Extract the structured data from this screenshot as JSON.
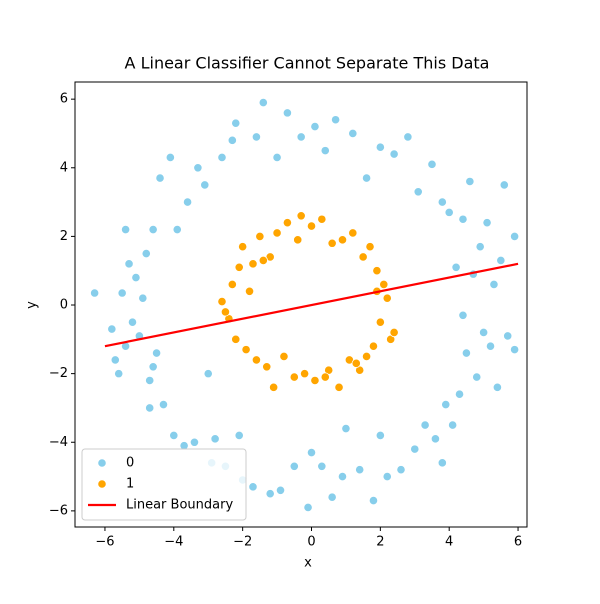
{
  "chart_data": {
    "type": "scatter",
    "title": "A Linear Classifier Cannot Separate This Data",
    "xlabel": "x",
    "ylabel": "y",
    "xlim": [
      -6.87,
      6.26
    ],
    "ylim": [
      -6.47,
      6.5
    ],
    "xticks": [
      {
        "value": -6,
        "label": "−6"
      },
      {
        "value": -4,
        "label": "−4"
      },
      {
        "value": -2,
        "label": "−2"
      },
      0,
      2,
      4,
      6
    ],
    "yticks": [
      {
        "value": -6,
        "label": "−6"
      },
      {
        "value": -4,
        "label": "−4"
      },
      {
        "value": -2,
        "label": "−2"
      },
      0,
      2,
      4,
      6
    ],
    "legend": "lower left",
    "series": [
      {
        "name": "0",
        "color": "#87ceeb",
        "x": [
          -6.3,
          -5.8,
          -5.7,
          -5.6,
          -5.5,
          -5.4,
          -5.3,
          -5.4,
          -5.2,
          -5.1,
          -5.0,
          -4.9,
          -4.8,
          -4.7,
          -4.6,
          -4.7,
          -4.5,
          -4.4,
          -4.3,
          -4.1,
          -4.0,
          -3.9,
          -3.7,
          -3.6,
          -3.4,
          -3.3,
          -3.1,
          -2.9,
          -2.8,
          -2.6,
          -2.5,
          -2.3,
          -2.0,
          -2.2,
          -1.7,
          -1.6,
          -1.4,
          -1.2,
          -1.0,
          -0.9,
          -0.7,
          -0.5,
          -0.3,
          -0.1,
          0.1,
          0.3,
          0.4,
          0.6,
          0.7,
          0.9,
          1.2,
          1.4,
          1.6,
          1.8,
          2.0,
          2.2,
          2.4,
          2.6,
          2.8,
          3.0,
          3.1,
          3.3,
          3.5,
          3.6,
          3.8,
          3.9,
          4.0,
          4.1,
          4.2,
          4.3,
          4.4,
          4.5,
          4.6,
          4.7,
          4.8,
          4.9,
          5.0,
          5.1,
          5.2,
          5.3,
          5.4,
          5.5,
          5.6,
          5.7,
          5.9,
          5.9,
          3.8,
          -2.1,
          4.4,
          -4.6,
          0.0,
          -3.0,
          2.0,
          1.0
        ],
        "y": [
          0.35,
          -0.7,
          -1.6,
          -2.0,
          0.35,
          -1.2,
          1.2,
          2.2,
          -0.5,
          0.8,
          -0.9,
          0.2,
          1.5,
          -2.2,
          2.2,
          -3.0,
          -1.4,
          3.7,
          -2.9,
          4.3,
          -3.8,
          2.2,
          -4.1,
          3.0,
          -4.0,
          4.0,
          3.5,
          -4.6,
          -3.9,
          4.3,
          -4.7,
          4.8,
          -5.1,
          5.3,
          -5.3,
          4.9,
          5.9,
          -5.5,
          4.3,
          -5.4,
          5.6,
          -4.7,
          4.9,
          -5.9,
          5.2,
          -4.7,
          4.5,
          -5.6,
          5.4,
          -5.0,
          5.0,
          -4.8,
          3.7,
          -5.7,
          4.6,
          -5.0,
          4.4,
          -4.8,
          4.9,
          -4.2,
          3.3,
          -3.5,
          4.1,
          -3.9,
          3.0,
          -2.9,
          2.7,
          -3.5,
          1.1,
          -2.6,
          2.5,
          -1.4,
          3.6,
          0.9,
          -2.1,
          1.7,
          -0.8,
          2.4,
          -1.2,
          0.6,
          -2.4,
          1.3,
          3.5,
          -0.9,
          2.0,
          -1.3,
          -4.6,
          -3.8,
          -0.3,
          -1.8,
          -4.3,
          -2.0,
          -3.8,
          -3.6
        ]
      },
      {
        "name": "1",
        "color": "#ffa500",
        "x": [
          -2.6,
          -2.4,
          -2.3,
          -2.2,
          -2.1,
          -2.0,
          -1.9,
          -1.8,
          -1.7,
          -1.6,
          -1.5,
          -1.3,
          -1.2,
          -1.1,
          -1.0,
          -0.8,
          -0.7,
          -0.5,
          -0.4,
          -0.2,
          0.0,
          0.1,
          0.3,
          0.5,
          0.6,
          0.8,
          0.9,
          1.1,
          1.2,
          1.4,
          1.5,
          1.6,
          1.7,
          1.8,
          1.9,
          2.0,
          2.1,
          2.2,
          2.3,
          2.4,
          1.9,
          -0.3,
          -2.5,
          1.3,
          -1.4,
          0.4
        ],
        "y": [
          0.1,
          -0.4,
          0.6,
          -1.0,
          1.1,
          1.7,
          -1.3,
          0.4,
          1.2,
          -1.6,
          2.0,
          -1.8,
          1.4,
          -2.4,
          2.1,
          -1.5,
          2.4,
          -2.1,
          1.9,
          -2.0,
          2.3,
          -2.2,
          2.5,
          -1.9,
          1.8,
          -2.4,
          1.9,
          -1.6,
          2.1,
          -1.9,
          1.4,
          -1.5,
          1.7,
          -1.2,
          1.0,
          -0.5,
          0.6,
          0.2,
          -1.0,
          -0.8,
          0.4,
          2.6,
          -0.2,
          -1.7,
          1.3,
          -2.1
        ]
      }
    ],
    "lines": [
      {
        "name": "Linear Boundary",
        "color": "#ff0000",
        "x": [
          -6,
          6
        ],
        "y": [
          -1.2,
          1.2
        ]
      }
    ]
  }
}
